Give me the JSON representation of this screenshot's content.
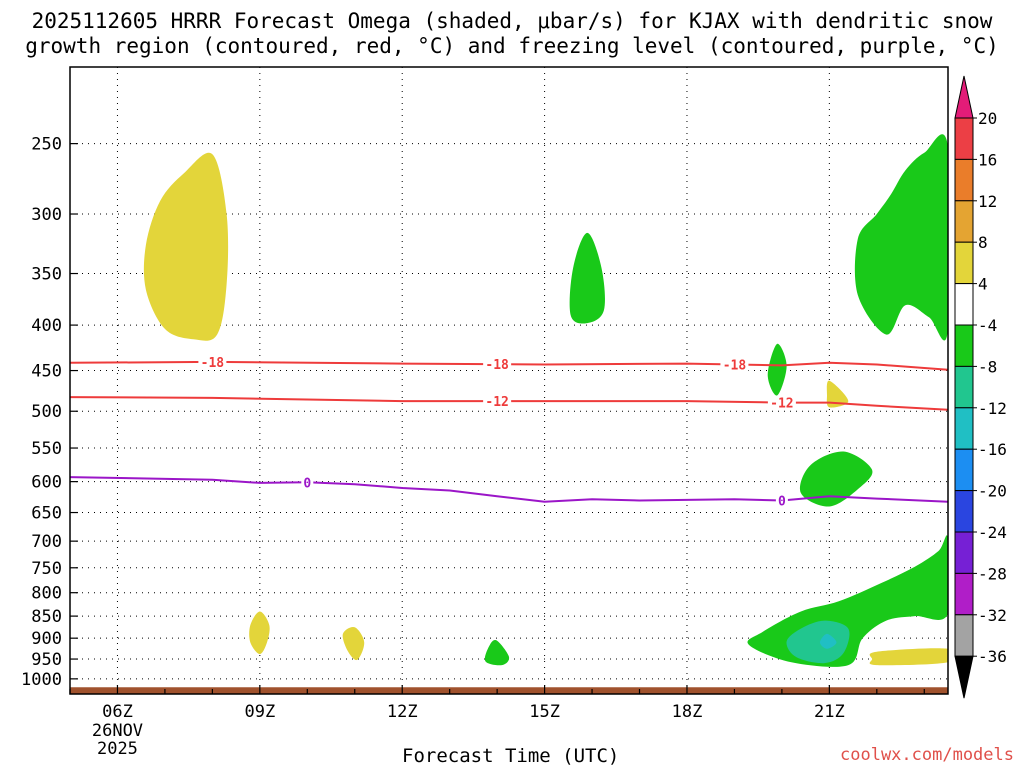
{
  "title": {
    "line1": "2025112605 HRRR Forecast Omega (shaded, μbar/s) for KJAX with dendritic snow",
    "line2": "growth region (contoured, red, °C) and freezing level (contoured, purple, °C)"
  },
  "credit": "coolwx.com/models",
  "chart_data": {
    "type": "time-height cross section",
    "title": "2025112605 HRRR Forecast Omega (shaded, μbar/s) for KJAX with dendritic snow growth region (contoured, red, °C) and freezing level (contoured, purple, °C)",
    "xlabel": "Forecast Time (UTC)",
    "ylabel": "",
    "xlim": [
      5,
      23.5
    ],
    "ylim": [
      1040,
      205
    ],
    "x_ticks": [
      {
        "hour": 6,
        "label": "06Z"
      },
      {
        "hour": 9,
        "label": "09Z"
      },
      {
        "hour": 12,
        "label": "12Z"
      },
      {
        "hour": 15,
        "label": "15Z"
      },
      {
        "hour": 18,
        "label": "18Z"
      },
      {
        "hour": 21,
        "label": "21Z"
      }
    ],
    "date_label": {
      "day": "26NOV",
      "year": "2025"
    },
    "y_ticks": [
      250,
      300,
      350,
      400,
      450,
      500,
      550,
      600,
      650,
      700,
      750,
      800,
      850,
      900,
      950,
      1000
    ],
    "colorbar": {
      "labels": [
        "20",
        "16",
        "12",
        "8",
        "4",
        "-4",
        "-8",
        "-12",
        "-16",
        "-20",
        "-24",
        "-28",
        "-32",
        "-36"
      ],
      "bins": [
        {
          "color": "#ec3f45"
        },
        {
          "color": "#ea7d2a"
        },
        {
          "color": "#e4a432"
        },
        {
          "color": "#e3d53a"
        },
        {
          "color": "#ffffff"
        },
        {
          "color": "#19c919"
        },
        {
          "color": "#21c68f"
        },
        {
          "color": "#20bfc4"
        },
        {
          "color": "#1c8ef2"
        },
        {
          "color": "#2a45e0"
        },
        {
          "color": "#7620d5"
        },
        {
          "color": "#b01ec8"
        },
        {
          "color": "#a3a3a3"
        }
      ],
      "above_color": "#e31c78",
      "below_color": "#000000"
    },
    "red_contours": [
      {
        "label": "-18",
        "points": [
          [
            5,
            441
          ],
          [
            8,
            440
          ],
          [
            12,
            442
          ],
          [
            15,
            443
          ],
          [
            18,
            442
          ],
          [
            20,
            444
          ],
          [
            21,
            441
          ],
          [
            22,
            443
          ],
          [
            23.5,
            449
          ]
        ],
        "label_hours": [
          8,
          14,
          19
        ]
      },
      {
        "label": "-12",
        "points": [
          [
            5,
            482
          ],
          [
            8,
            483
          ],
          [
            12,
            487
          ],
          [
            15,
            487
          ],
          [
            18,
            487
          ],
          [
            20,
            489
          ],
          [
            21,
            489
          ],
          [
            22,
            493
          ],
          [
            23.5,
            498
          ]
        ],
        "label_hours": [
          14,
          20
        ]
      }
    ],
    "freezing_level": {
      "label": "0",
      "points": [
        [
          5,
          593
        ],
        [
          8,
          597
        ],
        [
          9,
          602
        ],
        [
          10,
          601
        ],
        [
          11,
          604
        ],
        [
          12,
          610
        ],
        [
          13,
          614
        ],
        [
          14,
          623
        ],
        [
          15,
          632
        ],
        [
          16,
          628
        ],
        [
          17,
          630
        ],
        [
          18,
          629
        ],
        [
          19,
          628
        ],
        [
          20,
          630
        ],
        [
          21,
          623
        ],
        [
          22,
          627
        ],
        [
          23.5,
          632
        ]
      ],
      "label_hours": [
        10,
        20
      ]
    },
    "shaded_regions": [
      {
        "value_bin": "4 to 8",
        "color": "#e3d53a",
        "points": [
          [
            7.4,
            270
          ],
          [
            8.0,
            257
          ],
          [
            8.3,
            300
          ],
          [
            8.3,
            360
          ],
          [
            8.1,
            410
          ],
          [
            7.6,
            415
          ],
          [
            7.0,
            404
          ],
          [
            6.6,
            365
          ],
          [
            6.6,
            325
          ],
          [
            6.9,
            290
          ]
        ]
      },
      {
        "value_bin": "4 to 8",
        "color": "#e3d53a",
        "points": [
          [
            9.0,
            840
          ],
          [
            9.2,
            870
          ],
          [
            9.15,
            910
          ],
          [
            9.0,
            938
          ],
          [
            8.8,
            910
          ],
          [
            8.8,
            870
          ]
        ]
      },
      {
        "value_bin": "4 to 8",
        "color": "#e3d53a",
        "points": [
          [
            11.0,
            875
          ],
          [
            11.2,
            910
          ],
          [
            11.05,
            952
          ],
          [
            10.85,
            930
          ],
          [
            10.75,
            890
          ]
        ]
      },
      {
        "value_bin": "4 to 8",
        "color": "#e3d53a",
        "points": [
          [
            21.0,
            462
          ],
          [
            21.4,
            487
          ],
          [
            21.0,
            495
          ],
          [
            20.95,
            480
          ]
        ]
      },
      {
        "value_bin": "4 to 8",
        "color": "#e3d53a",
        "points": [
          [
            22.0,
            932
          ],
          [
            23.5,
            925
          ],
          [
            23.5,
            958
          ],
          [
            22.0,
            965
          ],
          [
            21.9,
            950
          ]
        ]
      },
      {
        "value_bin": "-4 to -8",
        "color": "#19c919",
        "points": [
          [
            15.9,
            315
          ],
          [
            16.2,
            345
          ],
          [
            16.25,
            385
          ],
          [
            15.9,
            398
          ],
          [
            15.55,
            390
          ],
          [
            15.6,
            345
          ]
        ]
      },
      {
        "value_bin": "-4 to -8",
        "color": "#19c919",
        "points": [
          [
            19.9,
            420
          ],
          [
            20.1,
            445
          ],
          [
            19.9,
            480
          ],
          [
            19.7,
            455
          ]
        ]
      },
      {
        "value_bin": "-4 to -8",
        "color": "#19c919",
        "points": [
          [
            21.3,
            555
          ],
          [
            21.9,
            582
          ],
          [
            21.6,
            612
          ],
          [
            21.0,
            640
          ],
          [
            20.4,
            618
          ],
          [
            20.6,
            575
          ]
        ]
      },
      {
        "value_bin": "-4 to -8",
        "color": "#19c919",
        "points": [
          [
            14.0,
            906
          ],
          [
            14.25,
            945
          ],
          [
            14.1,
            965
          ],
          [
            13.75,
            955
          ],
          [
            13.85,
            915
          ]
        ]
      },
      {
        "value_bin": "-4 to -8",
        "color": "#19c919",
        "points": [
          [
            23.5,
            252
          ],
          [
            23.5,
            405
          ],
          [
            23.1,
            392
          ],
          [
            22.6,
            380
          ],
          [
            22.2,
            410
          ],
          [
            21.6,
            370
          ],
          [
            21.6,
            320
          ],
          [
            22.0,
            300
          ],
          [
            22.3,
            285
          ],
          [
            22.6,
            268
          ],
          [
            23.0,
            256
          ]
        ]
      },
      {
        "value_bin": "-4 to -8",
        "color": "#19c919",
        "points": [
          [
            23.5,
            695
          ],
          [
            23.5,
            845
          ],
          [
            22.8,
            850
          ],
          [
            22.2,
            860
          ],
          [
            21.7,
            900
          ],
          [
            21.4,
            965
          ],
          [
            20.2,
            958
          ],
          [
            19.3,
            915
          ],
          [
            19.6,
            885
          ],
          [
            20.4,
            840
          ],
          [
            21.2,
            818
          ],
          [
            22.1,
            780
          ],
          [
            22.8,
            748
          ],
          [
            23.3,
            718
          ]
        ]
      },
      {
        "value_bin": "-8 to -12",
        "color": "#21c68f",
        "points": [
          [
            20.9,
            860
          ],
          [
            21.4,
            878
          ],
          [
            21.3,
            935
          ],
          [
            20.9,
            960
          ],
          [
            20.3,
            945
          ],
          [
            20.1,
            908
          ],
          [
            20.4,
            878
          ]
        ]
      },
      {
        "value_bin": "-12 to -16",
        "color": "#20bfc4",
        "points": [
          [
            20.95,
            890
          ],
          [
            21.15,
            910
          ],
          [
            20.95,
            925
          ],
          [
            20.8,
            910
          ]
        ]
      }
    ],
    "terrain": {
      "label": "surface",
      "color": "#a0522d",
      "pressure_top": 1022
    }
  }
}
